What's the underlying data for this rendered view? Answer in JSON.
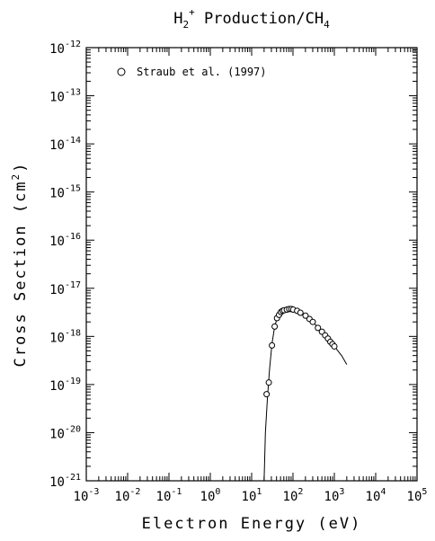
{
  "chart_data": {
    "type": "scatter",
    "title": {
      "main": "H",
      "sub1": "2",
      "sup": "+",
      "rest": " Production/CH",
      "sub2": "4"
    },
    "xlabel": "Electron Energy (eV)",
    "ylabel": {
      "text": "Cross Section (cm",
      "sup": "2",
      "close": ")"
    },
    "x_scale": "log",
    "y_scale": "log",
    "xlim": [
      0.001,
      100000
    ],
    "ylim": [
      1e-21,
      1e-12
    ],
    "x_ticks": [
      {
        "base": "10",
        "exp": "-3",
        "value": 0.001
      },
      {
        "base": "10",
        "exp": "-2",
        "value": 0.01
      },
      {
        "base": "10",
        "exp": "-1",
        "value": 0.1
      },
      {
        "base": "10",
        "exp": "0",
        "value": 1
      },
      {
        "base": "10",
        "exp": "1",
        "value": 10
      },
      {
        "base": "10",
        "exp": "2",
        "value": 100
      },
      {
        "base": "10",
        "exp": "3",
        "value": 1000
      },
      {
        "base": "10",
        "exp": "4",
        "value": 10000
      },
      {
        "base": "10",
        "exp": "5",
        "value": 100000
      }
    ],
    "y_ticks": [
      {
        "base": "10",
        "exp": "-21",
        "value": 1e-21
      },
      {
        "base": "10",
        "exp": "-20",
        "value": 1e-20
      },
      {
        "base": "10",
        "exp": "-19",
        "value": 1e-19
      },
      {
        "base": "10",
        "exp": "-18",
        "value": 1e-18
      },
      {
        "base": "10",
        "exp": "-17",
        "value": 1e-17
      },
      {
        "base": "10",
        "exp": "-16",
        "value": 1e-16
      },
      {
        "base": "10",
        "exp": "-15",
        "value": 1e-15
      },
      {
        "base": "10",
        "exp": "-14",
        "value": 1e-14
      },
      {
        "base": "10",
        "exp": "-13",
        "value": 1e-13
      },
      {
        "base": "10",
        "exp": "-12",
        "value": 1e-12
      }
    ],
    "legend": {
      "label": "Straub et al. (1997)",
      "marker": "open-circle",
      "position": "top-left"
    },
    "series": [
      {
        "name": "Straub et al. (1997)",
        "style": "markers",
        "points": [
          {
            "x": 23,
            "y": 6.3e-20
          },
          {
            "x": 26,
            "y": 1.1e-19
          },
          {
            "x": 31,
            "y": 6.5e-19
          },
          {
            "x": 36,
            "y": 1.6e-18
          },
          {
            "x": 41,
            "y": 2.4e-18
          },
          {
            "x": 46,
            "y": 2.8e-18
          },
          {
            "x": 51,
            "y": 3.2e-18
          },
          {
            "x": 56,
            "y": 3.4e-18
          },
          {
            "x": 61,
            "y": 3.5e-18
          },
          {
            "x": 71,
            "y": 3.6e-18
          },
          {
            "x": 81,
            "y": 3.7e-18
          },
          {
            "x": 91,
            "y": 3.7e-18
          },
          {
            "x": 101,
            "y": 3.6e-18
          },
          {
            "x": 126,
            "y": 3.4e-18
          },
          {
            "x": 151,
            "y": 3.1e-18
          },
          {
            "x": 201,
            "y": 2.7e-18
          },
          {
            "x": 251,
            "y": 2.3e-18
          },
          {
            "x": 301,
            "y": 2e-18
          },
          {
            "x": 401,
            "y": 1.5e-18
          },
          {
            "x": 501,
            "y": 1.25e-18
          },
          {
            "x": 601,
            "y": 1.05e-18
          },
          {
            "x": 701,
            "y": 9e-19
          },
          {
            "x": 801,
            "y": 7.7e-19
          },
          {
            "x": 901,
            "y": 6.9e-19
          },
          {
            "x": 1000,
            "y": 6.2e-19
          }
        ]
      },
      {
        "style": "line",
        "points": [
          {
            "x": 20,
            "y": 1e-21
          },
          {
            "x": 21.5,
            "y": 1e-20
          },
          {
            "x": 24,
            "y": 5e-20
          },
          {
            "x": 27,
            "y": 2e-19
          },
          {
            "x": 31,
            "y": 7e-19
          },
          {
            "x": 36,
            "y": 1.6e-18
          },
          {
            "x": 42,
            "y": 2.5e-18
          },
          {
            "x": 50,
            "y": 3.1e-18
          },
          {
            "x": 60,
            "y": 3.5e-18
          },
          {
            "x": 75,
            "y": 3.7e-18
          },
          {
            "x": 90,
            "y": 3.7e-18
          },
          {
            "x": 110,
            "y": 3.55e-18
          },
          {
            "x": 150,
            "y": 3.1e-18
          },
          {
            "x": 200,
            "y": 2.7e-18
          },
          {
            "x": 300,
            "y": 2e-18
          },
          {
            "x": 500,
            "y": 1.25e-18
          },
          {
            "x": 700,
            "y": 9e-19
          },
          {
            "x": 1000,
            "y": 6.2e-19
          },
          {
            "x": 1500,
            "y": 4e-19
          },
          {
            "x": 2000,
            "y": 2.6e-19
          }
        ]
      }
    ]
  }
}
